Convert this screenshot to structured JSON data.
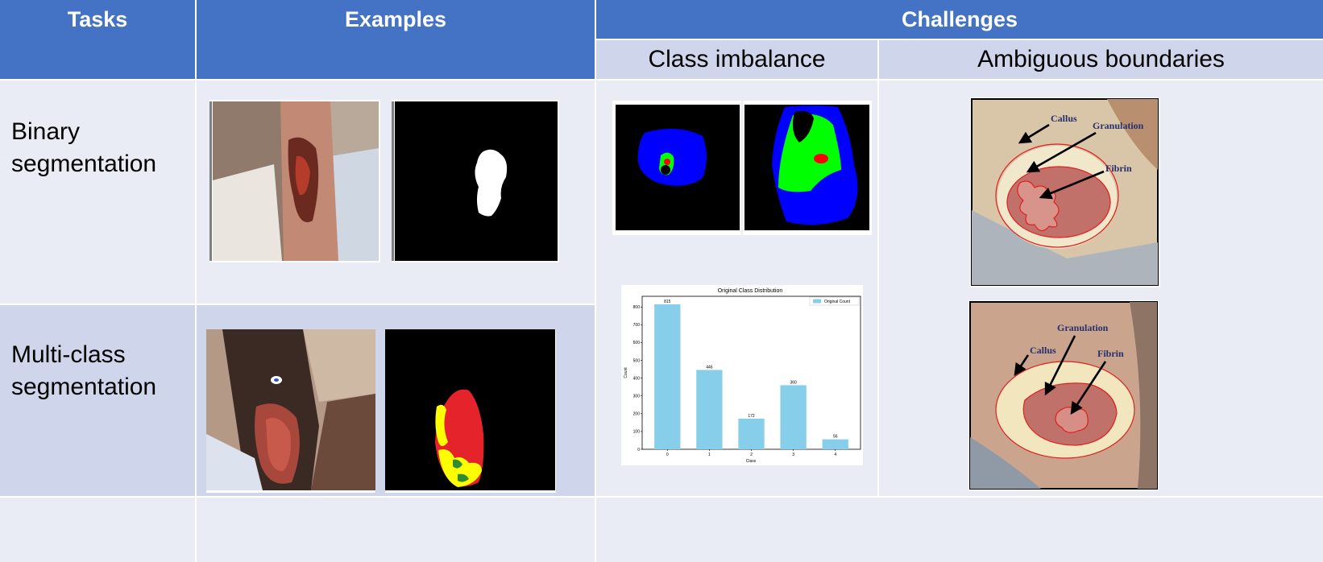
{
  "header": {
    "tasks": "Tasks",
    "examples": "Examples",
    "challenges": "Challenges",
    "class_imbalance": "Class imbalance",
    "ambiguous_boundaries": "Ambiguous boundaries"
  },
  "rows": {
    "binary": {
      "line1": "Binary",
      "line2": "segmentation"
    },
    "multiclass": {
      "line1": "Multi-class",
      "line2": "segmentation"
    }
  },
  "annotations": {
    "top": {
      "callus": "Callus",
      "granulation": "Granulation",
      "fibrin": "Fibrin"
    },
    "bottom": {
      "callus": "Callus",
      "granulation": "Granulation",
      "fibrin": "Fibrin"
    }
  },
  "colors": {
    "header_blue": "#4472c4",
    "row_light": "#e9ebf5",
    "row_medium": "#cfd5ea",
    "bar_color": "#87ceeb",
    "mask_blue": "#0000ff",
    "mask_green": "#00ff00",
    "mask_red": "#ff0000",
    "boundary_red": "#e02020"
  },
  "chart_data": {
    "type": "bar",
    "title": "Original Class Distribution",
    "xlabel": "Class",
    "ylabel": "Count",
    "categories": [
      "0",
      "1",
      "2",
      "3",
      "4"
    ],
    "values": [
      815,
      446,
      172,
      360,
      56
    ],
    "data_labels": [
      "815",
      "446",
      "172",
      "360",
      "56"
    ],
    "series": [
      {
        "name": "Original Count",
        "values": [
          815,
          446,
          172,
          360,
          56
        ]
      }
    ],
    "yticks": [
      "0",
      "100",
      "200",
      "300",
      "400",
      "500",
      "600",
      "700",
      "800"
    ],
    "ylim": [
      0,
      860
    ],
    "legend": "top-right",
    "grid": false
  }
}
